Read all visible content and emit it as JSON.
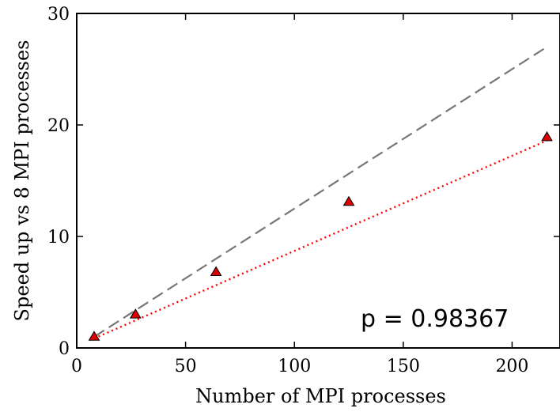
{
  "chart_data": {
    "type": "scatter",
    "xlabel": "Number of MPI processes",
    "ylabel": "Speed up vs 8 MPI processes",
    "xlim": [
      0,
      222
    ],
    "ylim": [
      0,
      30
    ],
    "x_ticks": [
      0,
      50,
      100,
      150,
      200
    ],
    "y_ticks": [
      0,
      10,
      20,
      30
    ],
    "grid": false,
    "series": [
      {
        "kind": "measured",
        "marker": "triangle",
        "color": "#dd0000",
        "x": [
          8,
          27,
          64,
          125,
          216
        ],
        "y": [
          1.0,
          3.0,
          6.8,
          13.1,
          18.9
        ]
      },
      {
        "kind": "ideal",
        "style": "dashed",
        "color": "#777777",
        "x": [
          8,
          216
        ],
        "y": [
          1.0,
          27.0
        ]
      },
      {
        "kind": "fit",
        "style": "dotted",
        "color": "#ff0000",
        "x": [
          8,
          216
        ],
        "y": [
          0.85,
          18.6
        ]
      }
    ],
    "annotation": "p = 0.98367"
  }
}
